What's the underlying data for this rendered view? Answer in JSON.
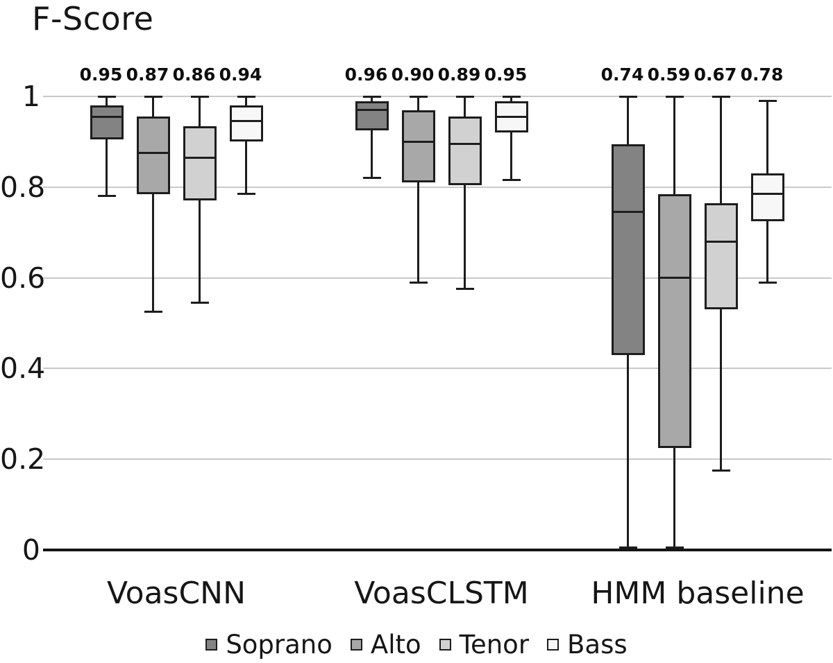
{
  "title": "F-Score",
  "colors": {
    "background": "#ffffff",
    "text": "#161616",
    "box_border": "#1d1d1d",
    "median_line": "#1d1d1d",
    "whisker": "#1d1d1d",
    "gridline": "#c9c9c9",
    "axis_line": "#141414"
  },
  "chart_data": {
    "type": "boxplot",
    "title": "F-Score",
    "xlabel": "",
    "ylabel": "",
    "ylim": [
      0,
      1
    ],
    "grid": "horizontal",
    "yticks": [
      {
        "label": "1",
        "value": 1.0
      },
      {
        "label": "0.8",
        "value": 0.8
      },
      {
        "label": "0.6",
        "value": 0.6
      },
      {
        "label": "0.4",
        "value": 0.4
      },
      {
        "label": "0.2",
        "value": 0.2
      },
      {
        "label": "0",
        "value": 0.0
      }
    ],
    "legend": {
      "position": "bottom",
      "entries": [
        {
          "label": "Soprano",
          "color": "#838383"
        },
        {
          "label": "Alto",
          "color": "#a8a8a8"
        },
        {
          "label": "Tenor",
          "color": "#d1d1d1"
        },
        {
          "label": "Bass",
          "color": "#f7f7f7"
        }
      ]
    },
    "groups": [
      {
        "label": "VoasCNN",
        "boxes": [
          {
            "voice": "Soprano",
            "value_label": "0.95",
            "whisker_low": 0.78,
            "q1": 0.905,
            "median": 0.955,
            "q3": 0.98,
            "whisker_high": 1.0
          },
          {
            "voice": "Alto",
            "value_label": "0.87",
            "whisker_low": 0.525,
            "q1": 0.785,
            "median": 0.875,
            "q3": 0.955,
            "whisker_high": 1.0
          },
          {
            "voice": "Tenor",
            "value_label": "0.86",
            "whisker_low": 0.545,
            "q1": 0.77,
            "median": 0.865,
            "q3": 0.935,
            "whisker_high": 1.0
          },
          {
            "voice": "Bass",
            "value_label": "0.94",
            "whisker_low": 0.785,
            "q1": 0.9,
            "median": 0.945,
            "q3": 0.98,
            "whisker_high": 1.0
          }
        ]
      },
      {
        "label": "VoasCLSTM",
        "boxes": [
          {
            "voice": "Soprano",
            "value_label": "0.96",
            "whisker_low": 0.82,
            "q1": 0.925,
            "median": 0.97,
            "q3": 0.99,
            "whisker_high": 1.0
          },
          {
            "voice": "Alto",
            "value_label": "0.90",
            "whisker_low": 0.59,
            "q1": 0.81,
            "median": 0.9,
            "q3": 0.97,
            "whisker_high": 1.0
          },
          {
            "voice": "Tenor",
            "value_label": "0.89",
            "whisker_low": 0.575,
            "q1": 0.805,
            "median": 0.895,
            "q3": 0.955,
            "whisker_high": 1.0
          },
          {
            "voice": "Bass",
            "value_label": "0.95",
            "whisker_low": 0.815,
            "q1": 0.92,
            "median": 0.955,
            "q3": 0.99,
            "whisker_high": 1.0
          }
        ]
      },
      {
        "label": "HMM baseline",
        "boxes": [
          {
            "voice": "Soprano",
            "value_label": "0.74",
            "whisker_low": 0.005,
            "q1": 0.43,
            "median": 0.745,
            "q3": 0.895,
            "whisker_high": 1.0
          },
          {
            "voice": "Alto",
            "value_label": "0.59",
            "whisker_low": 0.005,
            "q1": 0.225,
            "median": 0.6,
            "q3": 0.785,
            "whisker_high": 1.0
          },
          {
            "voice": "Tenor",
            "value_label": "0.67",
            "whisker_low": 0.175,
            "q1": 0.53,
            "median": 0.68,
            "q3": 0.765,
            "whisker_high": 1.0
          },
          {
            "voice": "Bass",
            "value_label": "0.78",
            "whisker_low": 0.59,
            "q1": 0.725,
            "median": 0.785,
            "q3": 0.83,
            "whisker_high": 0.99
          }
        ]
      }
    ]
  }
}
